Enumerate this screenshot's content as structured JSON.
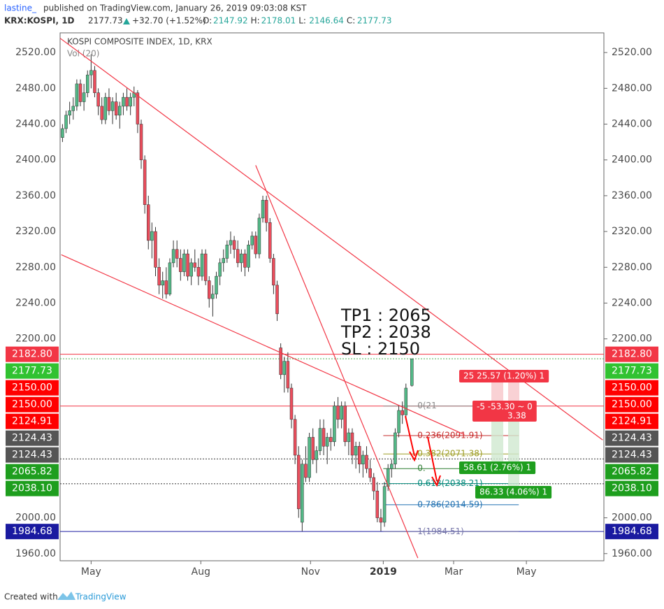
{
  "header": {
    "user": "lastine_",
    "published": "published on TradingView.com, January 26, 2019 09:03:08 KST",
    "symbol": "KRX:KOSPI, 1D",
    "price": "2177.73",
    "change": "+32.70 (+1.52%)",
    "ohlc": [
      {
        "key": "O:",
        "value": "2147.92"
      },
      {
        "key": "H:",
        "value": "2178.01"
      },
      {
        "key": "L:",
        "value": "2146.64"
      },
      {
        "key": "C:",
        "value": "2177.73"
      }
    ]
  },
  "footer": {
    "created": "Created with",
    "brand": "TradingView"
  },
  "chart_data": {
    "type": "candlestick",
    "title": "KOSPI COMPOSITE INDEX, 1D, KRX",
    "subtitle": "Vol (20)",
    "up_color": "#53b987",
    "down_color": "#eb4d5c",
    "grid": false,
    "xlim": [
      -26,
      430
    ],
    "xticks": [
      {
        "value": 0,
        "label": "May"
      },
      {
        "value": 92,
        "label": "Aug"
      },
      {
        "value": 184,
        "label": "Nov"
      },
      {
        "value": 245,
        "label": "2019"
      },
      {
        "value": 304,
        "label": "Mar"
      },
      {
        "value": 365,
        "label": "May"
      }
    ],
    "ylim": [
      1952,
      2542
    ],
    "yticks": [
      {
        "value": 1960,
        "label": "1960.00"
      },
      {
        "value": 2000,
        "label": "2000.00"
      },
      {
        "value": 2200,
        "label": "2200.00"
      },
      {
        "value": 2240,
        "label": "2240.00"
      },
      {
        "value": 2280,
        "label": "2280.00"
      },
      {
        "value": 2320,
        "label": "2320.00"
      },
      {
        "value": 2360,
        "label": "2360.00"
      },
      {
        "value": 2400,
        "label": "2400.00"
      },
      {
        "value": 2440,
        "label": "2440.00"
      },
      {
        "value": 2480,
        "label": "2480.00"
      },
      {
        "value": 2520,
        "label": "2520.00"
      }
    ],
    "candles": [
      {
        "x": -24,
        "o": 2425,
        "h": 2440,
        "l": 2420,
        "c": 2435
      },
      {
        "x": -21,
        "o": 2435,
        "h": 2455,
        "l": 2430,
        "c": 2450
      },
      {
        "x": -18,
        "o": 2450,
        "h": 2465,
        "l": 2440,
        "c": 2455
      },
      {
        "x": -15,
        "o": 2455,
        "h": 2470,
        "l": 2445,
        "c": 2460
      },
      {
        "x": -12,
        "o": 2460,
        "h": 2490,
        "l": 2455,
        "c": 2485
      },
      {
        "x": -9,
        "o": 2485,
        "h": 2490,
        "l": 2460,
        "c": 2465
      },
      {
        "x": -6,
        "o": 2465,
        "h": 2485,
        "l": 2455,
        "c": 2475
      },
      {
        "x": -3,
        "o": 2475,
        "h": 2500,
        "l": 2470,
        "c": 2495
      },
      {
        "x": 0,
        "o": 2495,
        "h": 2518,
        "l": 2480,
        "c": 2500
      },
      {
        "x": 3,
        "o": 2500,
        "h": 2505,
        "l": 2470,
        "c": 2475
      },
      {
        "x": 6,
        "o": 2475,
        "h": 2480,
        "l": 2450,
        "c": 2460
      },
      {
        "x": 9,
        "o": 2460,
        "h": 2470,
        "l": 2440,
        "c": 2445
      },
      {
        "x": 12,
        "o": 2445,
        "h": 2475,
        "l": 2440,
        "c": 2470
      },
      {
        "x": 15,
        "o": 2470,
        "h": 2480,
        "l": 2450,
        "c": 2455
      },
      {
        "x": 18,
        "o": 2455,
        "h": 2470,
        "l": 2440,
        "c": 2465
      },
      {
        "x": 21,
        "o": 2465,
        "h": 2475,
        "l": 2445,
        "c": 2450
      },
      {
        "x": 24,
        "o": 2450,
        "h": 2465,
        "l": 2435,
        "c": 2460
      },
      {
        "x": 27,
        "o": 2460,
        "h": 2475,
        "l": 2450,
        "c": 2470
      },
      {
        "x": 30,
        "o": 2470,
        "h": 2480,
        "l": 2455,
        "c": 2460
      },
      {
        "x": 33,
        "o": 2460,
        "h": 2475,
        "l": 2450,
        "c": 2470
      },
      {
        "x": 36,
        "o": 2470,
        "h": 2482,
        "l": 2460,
        "c": 2475
      },
      {
        "x": 39,
        "o": 2475,
        "h": 2478,
        "l": 2430,
        "c": 2440
      },
      {
        "x": 42,
        "o": 2440,
        "h": 2445,
        "l": 2390,
        "c": 2400
      },
      {
        "x": 45,
        "o": 2400,
        "h": 2405,
        "l": 2340,
        "c": 2350
      },
      {
        "x": 48,
        "o": 2350,
        "h": 2360,
        "l": 2300,
        "c": 2310
      },
      {
        "x": 51,
        "o": 2310,
        "h": 2330,
        "l": 2290,
        "c": 2320
      },
      {
        "x": 54,
        "o": 2320,
        "h": 2325,
        "l": 2270,
        "c": 2280
      },
      {
        "x": 57,
        "o": 2280,
        "h": 2290,
        "l": 2250,
        "c": 2260
      },
      {
        "x": 60,
        "o": 2260,
        "h": 2275,
        "l": 2245,
        "c": 2265
      },
      {
        "x": 63,
        "o": 2265,
        "h": 2280,
        "l": 2245,
        "c": 2250
      },
      {
        "x": 66,
        "o": 2250,
        "h": 2290,
        "l": 2248,
        "c": 2285
      },
      {
        "x": 69,
        "o": 2285,
        "h": 2310,
        "l": 2280,
        "c": 2300
      },
      {
        "x": 72,
        "o": 2300,
        "h": 2310,
        "l": 2280,
        "c": 2290
      },
      {
        "x": 75,
        "o": 2290,
        "h": 2300,
        "l": 2265,
        "c": 2275
      },
      {
        "x": 78,
        "o": 2275,
        "h": 2300,
        "l": 2270,
        "c": 2295
      },
      {
        "x": 81,
        "o": 2295,
        "h": 2300,
        "l": 2265,
        "c": 2270
      },
      {
        "x": 84,
        "o": 2270,
        "h": 2290,
        "l": 2260,
        "c": 2285
      },
      {
        "x": 87,
        "o": 2285,
        "h": 2300,
        "l": 2275,
        "c": 2280
      },
      {
        "x": 90,
        "o": 2280,
        "h": 2290,
        "l": 2260,
        "c": 2270
      },
      {
        "x": 93,
        "o": 2270,
        "h": 2300,
        "l": 2265,
        "c": 2295
      },
      {
        "x": 96,
        "o": 2295,
        "h": 2300,
        "l": 2260,
        "c": 2265
      },
      {
        "x": 99,
        "o": 2265,
        "h": 2270,
        "l": 2235,
        "c": 2245
      },
      {
        "x": 102,
        "o": 2245,
        "h": 2260,
        "l": 2225,
        "c": 2250
      },
      {
        "x": 105,
        "o": 2250,
        "h": 2275,
        "l": 2245,
        "c": 2270
      },
      {
        "x": 108,
        "o": 2270,
        "h": 2290,
        "l": 2260,
        "c": 2285
      },
      {
        "x": 111,
        "o": 2285,
        "h": 2300,
        "l": 2275,
        "c": 2290
      },
      {
        "x": 114,
        "o": 2290,
        "h": 2310,
        "l": 2285,
        "c": 2305
      },
      {
        "x": 117,
        "o": 2305,
        "h": 2320,
        "l": 2295,
        "c": 2310
      },
      {
        "x": 120,
        "o": 2310,
        "h": 2315,
        "l": 2290,
        "c": 2300
      },
      {
        "x": 123,
        "o": 2300,
        "h": 2310,
        "l": 2280,
        "c": 2285
      },
      {
        "x": 126,
        "o": 2285,
        "h": 2300,
        "l": 2275,
        "c": 2295
      },
      {
        "x": 129,
        "o": 2295,
        "h": 2300,
        "l": 2270,
        "c": 2280
      },
      {
        "x": 132,
        "o": 2280,
        "h": 2310,
        "l": 2275,
        "c": 2305
      },
      {
        "x": 135,
        "o": 2305,
        "h": 2320,
        "l": 2300,
        "c": 2315
      },
      {
        "x": 138,
        "o": 2315,
        "h": 2320,
        "l": 2290,
        "c": 2295
      },
      {
        "x": 141,
        "o": 2295,
        "h": 2340,
        "l": 2290,
        "c": 2335
      },
      {
        "x": 144,
        "o": 2335,
        "h": 2360,
        "l": 2330,
        "c": 2355
      },
      {
        "x": 147,
        "o": 2355,
        "h": 2360,
        "l": 2320,
        "c": 2330
      },
      {
        "x": 150,
        "o": 2330,
        "h": 2335,
        "l": 2285,
        "c": 2290
      },
      {
        "x": 153,
        "o": 2290,
        "h": 2295,
        "l": 2250,
        "c": 2260
      },
      {
        "x": 156,
        "o": 2260,
        "h": 2265,
        "l": 2220,
        "c": 2228
      },
      {
        "x": 159,
        "o": 2190,
        "h": 2195,
        "l": 2155,
        "c": 2160
      },
      {
        "x": 162,
        "o": 2160,
        "h": 2180,
        "l": 2140,
        "c": 2175
      },
      {
        "x": 165,
        "o": 2175,
        "h": 2185,
        "l": 2140,
        "c": 2145
      },
      {
        "x": 168,
        "o": 2145,
        "h": 2150,
        "l": 2100,
        "c": 2110
      },
      {
        "x": 171,
        "o": 2110,
        "h": 2115,
        "l": 2060,
        "c": 2070
      },
      {
        "x": 174,
        "o": 2070,
        "h": 2080,
        "l": 2000,
        "c": 2010
      },
      {
        "x": 177,
        "o": 1995,
        "h": 2065,
        "l": 1985,
        "c": 2060
      },
      {
        "x": 180,
        "o": 2060,
        "h": 2080,
        "l": 2040,
        "c": 2045
      },
      {
        "x": 183,
        "o": 2045,
        "h": 2095,
        "l": 2040,
        "c": 2090
      },
      {
        "x": 186,
        "o": 2090,
        "h": 2100,
        "l": 2060,
        "c": 2065
      },
      {
        "x": 189,
        "o": 2065,
        "h": 2080,
        "l": 2050,
        "c": 2075
      },
      {
        "x": 192,
        "o": 2075,
        "h": 2110,
        "l": 2070,
        "c": 2100
      },
      {
        "x": 195,
        "o": 2100,
        "h": 2110,
        "l": 2070,
        "c": 2080
      },
      {
        "x": 198,
        "o": 2080,
        "h": 2095,
        "l": 2060,
        "c": 2090
      },
      {
        "x": 201,
        "o": 2090,
        "h": 2100,
        "l": 2075,
        "c": 2085
      },
      {
        "x": 204,
        "o": 2085,
        "h": 2130,
        "l": 2080,
        "c": 2125
      },
      {
        "x": 207,
        "o": 2125,
        "h": 2135,
        "l": 2100,
        "c": 2110
      },
      {
        "x": 210,
        "o": 2110,
        "h": 2130,
        "l": 2100,
        "c": 2125
      },
      {
        "x": 213,
        "o": 2125,
        "h": 2130,
        "l": 2080,
        "c": 2085
      },
      {
        "x": 216,
        "o": 2085,
        "h": 2100,
        "l": 2070,
        "c": 2095
      },
      {
        "x": 219,
        "o": 2095,
        "h": 2100,
        "l": 2060,
        "c": 2070
      },
      {
        "x": 222,
        "o": 2070,
        "h": 2085,
        "l": 2055,
        "c": 2080
      },
      {
        "x": 225,
        "o": 2080,
        "h": 2085,
        "l": 2050,
        "c": 2060
      },
      {
        "x": 228,
        "o": 2060,
        "h": 2075,
        "l": 2045,
        "c": 2070
      },
      {
        "x": 231,
        "o": 2070,
        "h": 2080,
        "l": 2050,
        "c": 2055
      },
      {
        "x": 234,
        "o": 2055,
        "h": 2065,
        "l": 2040,
        "c": 2045
      },
      {
        "x": 237,
        "o": 2045,
        "h": 2050,
        "l": 2020,
        "c": 2030
      },
      {
        "x": 240,
        "o": 2030,
        "h": 2040,
        "l": 1995,
        "c": 2000
      },
      {
        "x": 243,
        "o": 2000,
        "h": 2010,
        "l": 1985,
        "c": 1995
      },
      {
        "x": 246,
        "o": 1995,
        "h": 2040,
        "l": 1990,
        "c": 2035
      },
      {
        "x": 249,
        "o": 2035,
        "h": 2060,
        "l": 2030,
        "c": 2055
      },
      {
        "x": 252,
        "o": 2055,
        "h": 2065,
        "l": 2045,
        "c": 2060
      },
      {
        "x": 255,
        "o": 2060,
        "h": 2100,
        "l": 2055,
        "c": 2095
      },
      {
        "x": 258,
        "o": 2095,
        "h": 2125,
        "l": 2090,
        "c": 2120
      },
      {
        "x": 261,
        "o": 2120,
        "h": 2130,
        "l": 2105,
        "c": 2115
      },
      {
        "x": 264,
        "o": 2115,
        "h": 2150,
        "l": 2110,
        "c": 2145
      },
      {
        "x": 269,
        "o": 2147.92,
        "h": 2178.01,
        "l": 2146.64,
        "c": 2177.73
      }
    ],
    "trendlines": [
      {
        "x": [
          -26,
          429
        ],
        "y": [
          2536,
          2087
        ],
        "color": "#f23645"
      },
      {
        "x": [
          -25,
          313
        ],
        "y": [
          2294,
          2093
        ],
        "color": "#f23645"
      },
      {
        "x": [
          138,
          274
        ],
        "y": [
          2394,
          1955
        ],
        "color": "#f23645"
      }
    ],
    "hlines": [
      {
        "value": 2182.8,
        "color": "#f23645",
        "dash": false
      },
      {
        "value": 2177.73,
        "color": "#4caf50",
        "dash": true
      },
      {
        "value": 2124.91,
        "color": "#f23645",
        "dash": false
      },
      {
        "value": 2065.82,
        "color": "#333333",
        "dash": true
      },
      {
        "value": 2038.1,
        "color": "#333333",
        "dash": true
      },
      {
        "value": 1984.68,
        "color": "#1a1aa0",
        "dash": false
      }
    ],
    "price_labels": [
      {
        "value": 2182.8,
        "label": "2182.80",
        "color": "#f23645"
      },
      {
        "value": 2177.73,
        "label": "2177.73",
        "color": "#31c231"
      },
      {
        "value": 2150,
        "label": "2150.00",
        "color": "#ff0000"
      },
      {
        "value": 2150,
        "label": "2150.00",
        "color": "#ff0000"
      },
      {
        "value": 2124.91,
        "label": "2124.91",
        "color": "#ff0000"
      },
      {
        "value": 2124.43,
        "label": "2124.43",
        "color": "#555555"
      },
      {
        "value": 2124.43,
        "label": "2124.43",
        "color": "#555555"
      },
      {
        "value": 2065.82,
        "label": "2065.82",
        "color": "#1e9e1e"
      },
      {
        "value": 2038.1,
        "label": "2038.10",
        "color": "#1e9e1e"
      },
      {
        "value": 1984.68,
        "label": "1984.68",
        "color": "#1a1aa0"
      }
    ],
    "fib": {
      "x": [
        245,
        300
      ],
      "levels": [
        {
          "value": 2124.91,
          "label": "0(21",
          "color": "#888888"
        },
        {
          "value": 2091.91,
          "label": "0.236(2091.91)",
          "color": "#c62828"
        },
        {
          "value": 2071.38,
          "label": "0.382(2071.38)",
          "color": "#9e9d24"
        },
        {
          "value": 2055,
          "label": "0.",
          "color": "#2e7d32"
        },
        {
          "value": 2038.21,
          "label": "0.618(2038.21)",
          "color": "#00897b"
        },
        {
          "value": 2014.59,
          "label": "0.786(2014.59)",
          "color": "#1e6fb0"
        },
        {
          "value": 1984.51,
          "label": "1(1984.51)",
          "color": "#7777aa"
        }
      ]
    },
    "annotations": [
      "TP1 : 2065",
      "TP2 : 2038",
      "SL : 2150"
    ],
    "positions": [
      {
        "text": "25  25.57 (1.20%)  1",
        "color": "#f23645"
      },
      {
        "text": "-5  -53.30 ~ 0",
        "sub": "3.38",
        "color": "#f23645"
      },
      {
        "text": "58.61 (2.76%)  1",
        "color": "#1e9e1e"
      },
      {
        "text": "86.33 (4.06%)  1",
        "color": "#1e9e1e"
      }
    ]
  }
}
